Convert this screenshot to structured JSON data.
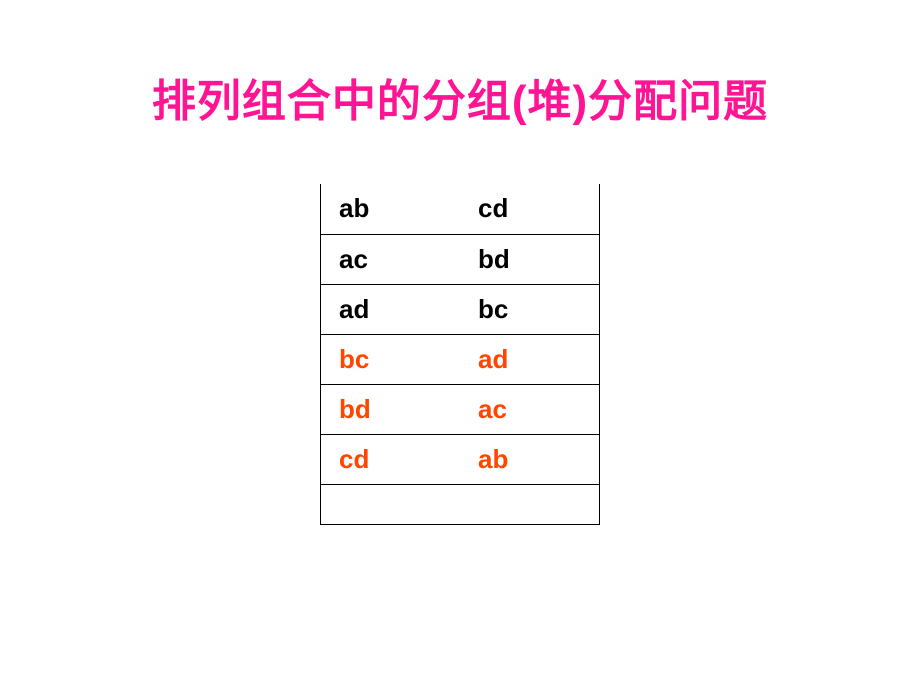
{
  "title": {
    "text": "排列组合中的分组(堆)分配问题",
    "color": "#ff1493",
    "fontsize": 44
  },
  "table": {
    "cell_fontsize": 26,
    "colors": {
      "black": "#000000",
      "orange": "#ff4500"
    },
    "rows": [
      {
        "left": "ab",
        "right": "cd",
        "color": "black"
      },
      {
        "left": "ac",
        "right": "bd",
        "color": "black"
      },
      {
        "left": "ad",
        "right": "bc",
        "color": "black"
      },
      {
        "left": "bc",
        "right": "ad",
        "color": "orange"
      },
      {
        "left": "bd",
        "right": "ac",
        "color": "orange"
      },
      {
        "left": "cd",
        "right": "ab",
        "color": "orange"
      }
    ]
  }
}
